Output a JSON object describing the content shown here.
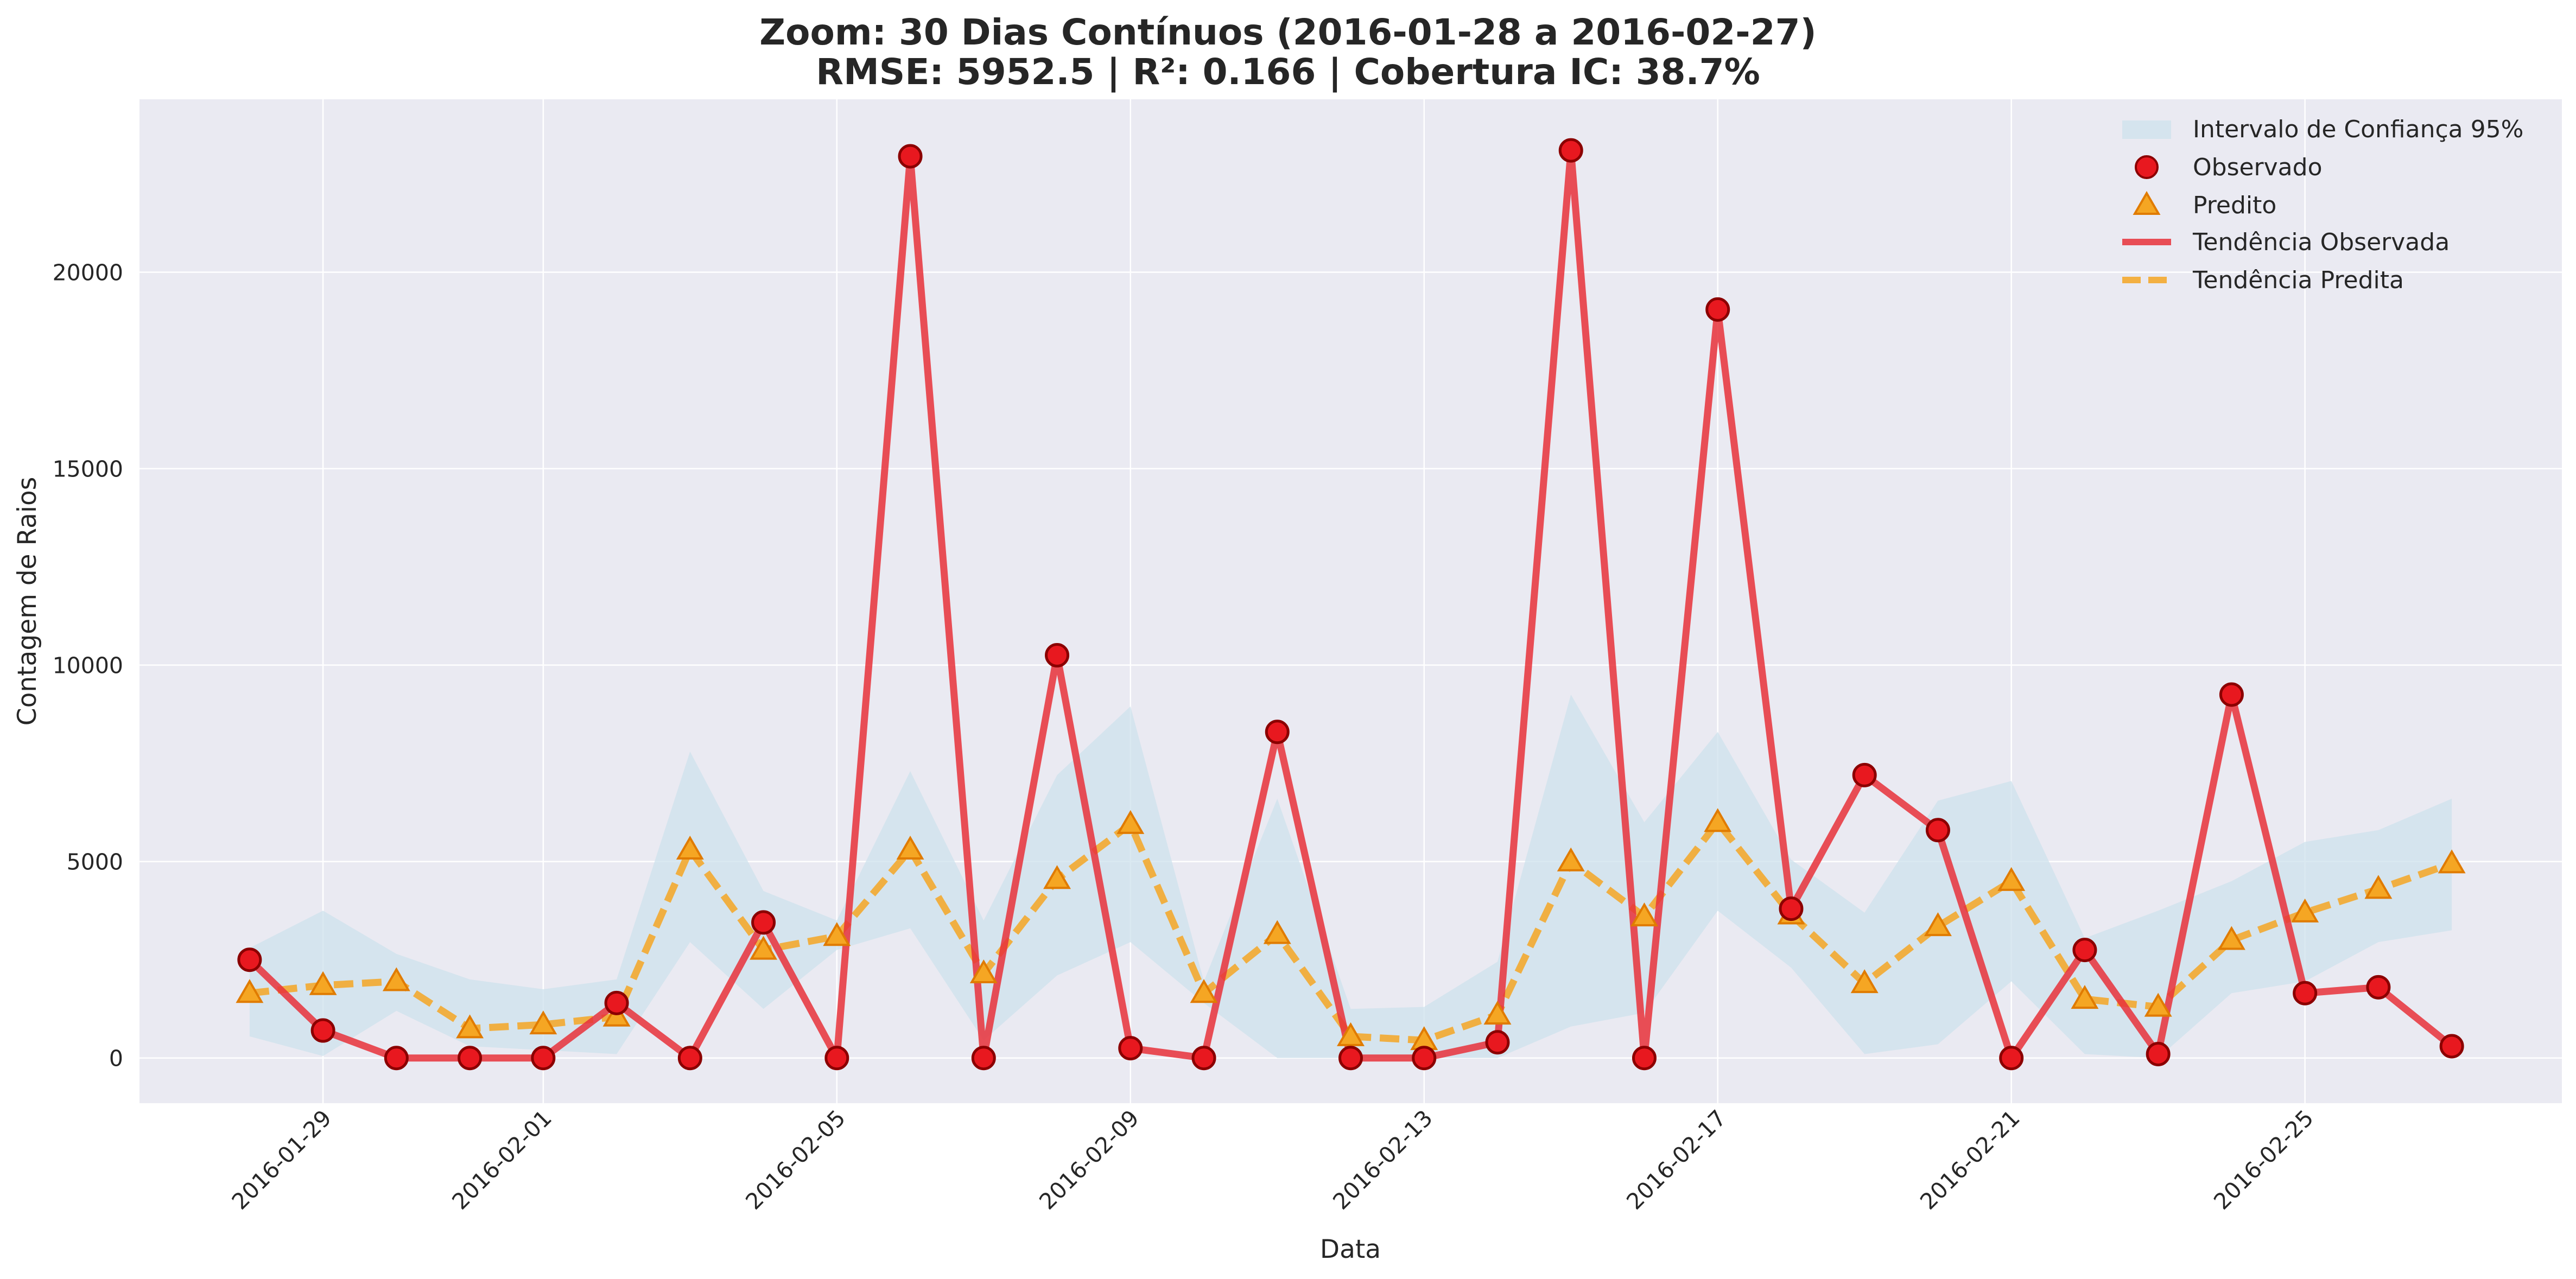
{
  "chart_data": {
    "type": "line",
    "title": "Zoom: 30 Dias Contínuos (2016-01-28 a 2016-02-27)",
    "subtitle": "RMSE: 5952.5 | R²: 0.166 | Cobertura IC: 38.7%",
    "xlabel": "Data",
    "ylabel": "Contagem de Raios",
    "x_start": "2016-01-28",
    "x": [
      "2016-01-28",
      "2016-01-29",
      "2016-01-30",
      "2016-01-31",
      "2016-02-01",
      "2016-02-02",
      "2016-02-03",
      "2016-02-04",
      "2016-02-05",
      "2016-02-06",
      "2016-02-07",
      "2016-02-08",
      "2016-02-09",
      "2016-02-10",
      "2016-02-11",
      "2016-02-12",
      "2016-02-13",
      "2016-02-14",
      "2016-02-15",
      "2016-02-16",
      "2016-02-17",
      "2016-02-18",
      "2016-02-19",
      "2016-02-20",
      "2016-02-21",
      "2016-02-22",
      "2016-02-23",
      "2016-02-24",
      "2016-02-25",
      "2016-02-26",
      "2016-02-27"
    ],
    "xticks": [
      "2016-01-29",
      "2016-02-01",
      "2016-02-05",
      "2016-02-09",
      "2016-02-13",
      "2016-02-17",
      "2016-02-21",
      "2016-02-25"
    ],
    "xlim": [
      "2016-01-26.5",
      "2016-02-28.5"
    ],
    "ylim": [
      -1150,
      24400
    ],
    "yticks": [
      0,
      5000,
      10000,
      15000,
      20000
    ],
    "grid": true,
    "legend_position": "top-right",
    "series": [
      {
        "name": "Observado",
        "line_name": "Tendência Observada",
        "color": "#e8313a",
        "marker": "circle",
        "values": [
          2500,
          700,
          0,
          0,
          0,
          1400,
          0,
          3450,
          0,
          22950,
          0,
          10250,
          250,
          0,
          8300,
          0,
          0,
          400,
          23100,
          0,
          19050,
          3800,
          7200,
          5800,
          0,
          2750,
          100,
          9250,
          1650,
          1800,
          300
        ]
      },
      {
        "name": "Predito",
        "line_name": "Tendência Predita",
        "color": "#f5a623",
        "marker": "triangle",
        "style": "dashed",
        "values": [
          1650,
          1850,
          1950,
          750,
          850,
          1050,
          5300,
          2750,
          3100,
          5300,
          2150,
          4550,
          5950,
          1650,
          3150,
          550,
          450,
          1100,
          5000,
          3600,
          6000,
          3650,
          1900,
          3350,
          4500,
          1500,
          1300,
          3000,
          3700,
          4300,
          4950
        ]
      }
    ],
    "confidence_band": {
      "name": "Intervalo de Confiança 95%",
      "color": "#cde1ec",
      "lower": [
        550,
        50,
        1200,
        300,
        200,
        100,
        2950,
        1250,
        2750,
        3300,
        450,
        2100,
        2950,
        1400,
        0,
        0,
        0,
        0,
        800,
        1150,
        3750,
        2300,
        100,
        350,
        1950,
        100,
        0,
        1650,
        1950,
        2950,
        3250
      ],
      "upper": [
        2800,
        3750,
        2650,
        2000,
        1750,
        2000,
        7800,
        4250,
        3500,
        7300,
        3500,
        7200,
        8950,
        1950,
        6600,
        1250,
        1300,
        2450,
        9250,
        6000,
        8300,
        5050,
        3700,
        6550,
        7050,
        3050,
        3750,
        4500,
        5500,
        5800,
        6600
      ]
    }
  }
}
